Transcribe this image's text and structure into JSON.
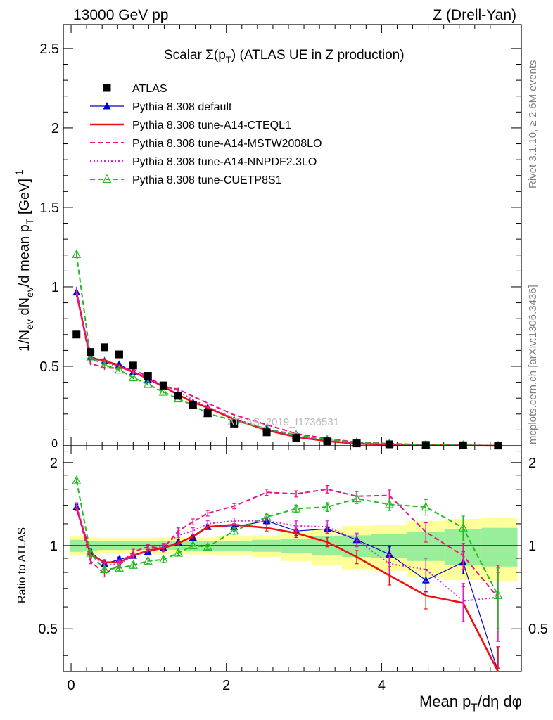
{
  "header": {
    "left": "13000 GeV pp",
    "right": "Z (Drell-Yan)"
  },
  "side_labels": {
    "rivet": "Rivet 3.1.10, ≥ 2.6M events",
    "mcplots": "mcplots.cern.ch [arXiv:1306.3436]"
  },
  "chart_data": {
    "type": "scatter",
    "title": "Scalar Σ(p_T) (ATLAS UE in Z production)",
    "watermark": "ATLAS_2019_I1736531",
    "xlabel": "Mean p_T/dη dφ",
    "ylabel": "1/N_ev dN_ev/d mean p_T [GeV]^-1",
    "ratio_ylabel": "Ratio to ATLAS",
    "xlim": [
      -0.1,
      5.8
    ],
    "ylim": [
      0,
      2.65
    ],
    "ratio_ylim": [
      0.35,
      2.3
    ],
    "x_ticks": [
      0,
      2,
      4
    ],
    "y_ticks": [
      0.5,
      1,
      1.5,
      2,
      2.5
    ],
    "y_tick_labels": [
      "0.5",
      "1",
      "1.5",
      "2",
      "2.5"
    ],
    "y_zero_label": "0",
    "ratio_y_ticks": [
      0.5,
      1,
      2
    ],
    "ratio_y_tick_labels": [
      "0.5",
      "1",
      "2"
    ],
    "x": [
      0.07,
      0.25,
      0.43,
      0.62,
      0.8,
      0.99,
      1.19,
      1.38,
      1.57,
      1.76,
      2.1,
      2.52,
      2.9,
      3.3,
      3.68,
      4.1,
      4.57,
      5.05,
      5.5
    ],
    "band_edges": [
      -0.02,
      0.16,
      0.34,
      0.53,
      0.71,
      0.9,
      1.09,
      1.28,
      1.47,
      1.66,
      1.86,
      2.33,
      2.71,
      3.1,
      3.49,
      3.87,
      4.33,
      4.81,
      5.29,
      5.75
    ],
    "uncertainty_bands": {
      "stat_green": [
        0.05,
        0.04,
        0.035,
        0.035,
        0.035,
        0.035,
        0.035,
        0.035,
        0.04,
        0.04,
        0.04,
        0.05,
        0.06,
        0.08,
        0.09,
        0.1,
        0.12,
        0.15,
        0.16
      ],
      "total_yellow": [
        0.08,
        0.07,
        0.065,
        0.065,
        0.065,
        0.065,
        0.07,
        0.07,
        0.07,
        0.07,
        0.08,
        0.09,
        0.12,
        0.15,
        0.18,
        0.19,
        0.23,
        0.25,
        0.26
      ]
    },
    "series": [
      {
        "name": "ATLAS",
        "color": "#000000",
        "marker": "square",
        "values": [
          0.7,
          0.59,
          0.62,
          0.575,
          0.505,
          0.44,
          0.38,
          0.315,
          0.255,
          0.205,
          0.14,
          0.085,
          0.05,
          0.028,
          0.015,
          0.009,
          0.005,
          0.003,
          0.0015
        ]
      },
      {
        "name": "Pythia 8.308 default",
        "color": "#0000cc",
        "marker": "triangle",
        "line": "solid",
        "ratio": [
          1.38,
          0.95,
          0.86,
          0.89,
          0.92,
          0.95,
          0.98,
          1.03,
          1.07,
          1.17,
          1.17,
          1.23,
          1.13,
          1.15,
          1.05,
          0.93,
          0.75,
          0.87,
          0.33
        ],
        "ratio_err": [
          0.03,
          0.02,
          0.02,
          0.02,
          0.02,
          0.02,
          0.02,
          0.02,
          0.02,
          0.02,
          0.03,
          0.03,
          0.04,
          0.04,
          0.05,
          0.06,
          0.07,
          0.08,
          0.1
        ]
      },
      {
        "name": "Pythia 8.308 tune-A14-CTEQL1",
        "color": "#ee1111",
        "marker": "none",
        "line": "solid-thick",
        "ratio": [
          1.37,
          0.93,
          0.87,
          0.87,
          0.92,
          0.96,
          0.98,
          1.02,
          1.08,
          1.17,
          1.19,
          1.16,
          1.11,
          1.03,
          0.91,
          0.78,
          0.66,
          0.62,
          0.33
        ],
        "ratio_err": [
          0.03,
          0.02,
          0.02,
          0.02,
          0.02,
          0.02,
          0.02,
          0.02,
          0.02,
          0.02,
          0.03,
          0.03,
          0.04,
          0.04,
          0.05,
          0.06,
          0.07,
          0.09,
          0.1
        ]
      },
      {
        "name": "Pythia 8.308 tune-A14-MSTW2008LO",
        "color": "#ee1188",
        "marker": "none",
        "line": "dashed",
        "ratio": [
          1.39,
          0.88,
          0.79,
          0.85,
          0.95,
          0.99,
          0.98,
          1.13,
          1.22,
          1.31,
          1.39,
          1.56,
          1.54,
          1.6,
          1.51,
          1.52,
          1.12,
          0.92,
          0.65
        ],
        "ratio_err": [
          0.03,
          0.02,
          0.02,
          0.02,
          0.02,
          0.02,
          0.03,
          0.03,
          0.03,
          0.03,
          0.03,
          0.04,
          0.04,
          0.05,
          0.06,
          0.07,
          0.09,
          0.1,
          0.2
        ]
      },
      {
        "name": "Pythia 8.308 tune-A14-NNPDF2.3LO",
        "color": "#dd22cc",
        "marker": "none",
        "line": "dotted",
        "ratio": [
          1.4,
          0.94,
          0.85,
          0.86,
          0.92,
          0.96,
          1.0,
          1.09,
          1.13,
          1.2,
          1.23,
          1.23,
          1.18,
          1.17,
          1.05,
          0.86,
          0.82,
          0.63,
          0.65
        ],
        "ratio_err": [
          0.03,
          0.02,
          0.02,
          0.02,
          0.02,
          0.02,
          0.02,
          0.02,
          0.03,
          0.03,
          0.03,
          0.04,
          0.05,
          0.06,
          0.06,
          0.07,
          0.08,
          0.1,
          0.15
        ]
      },
      {
        "name": "Pythia 8.308 tune-CUETP8S1",
        "color": "#22bb22",
        "marker": "triangle-open",
        "line": "dashed",
        "ratio": [
          1.72,
          0.94,
          0.82,
          0.83,
          0.85,
          0.88,
          0.89,
          0.94,
          1.0,
          0.99,
          1.13,
          1.27,
          1.36,
          1.38,
          1.48,
          1.41,
          1.38,
          1.16,
          0.66
        ],
        "ratio_err": [
          0.03,
          0.02,
          0.02,
          0.02,
          0.02,
          0.02,
          0.02,
          0.02,
          0.02,
          0.02,
          0.03,
          0.03,
          0.04,
          0.05,
          0.06,
          0.07,
          0.09,
          0.12,
          0.17
        ]
      }
    ]
  }
}
